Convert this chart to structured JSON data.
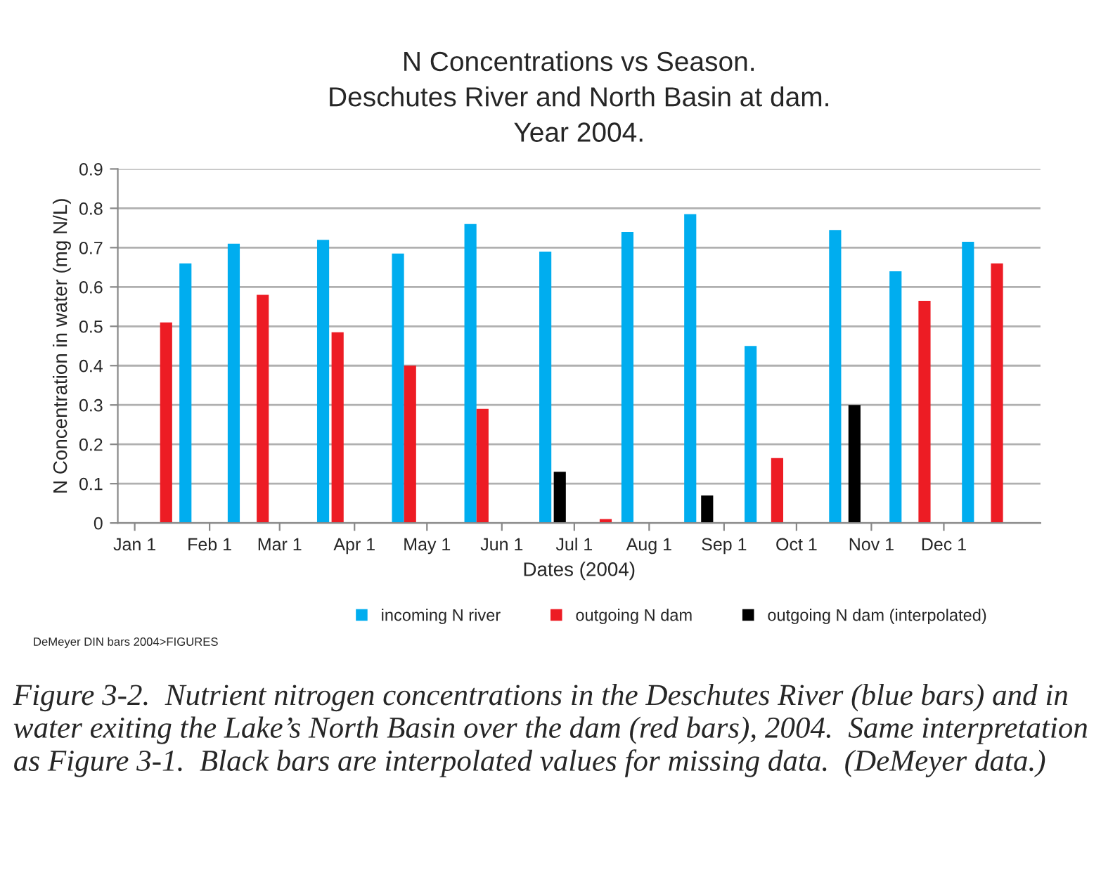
{
  "chart_data": {
    "type": "bar",
    "title": "N Concentrations vs Season.\nDeschutes River and North Basin at dam.\nYear 2004.",
    "xlabel": "Dates (2004)",
    "ylabel": "N Concentration in water (mg N/L)",
    "series": [
      {
        "name": "incoming N river",
        "color": "#00adef",
        "x": [
          "2004-01-22",
          "2004-02-11",
          "2004-03-19",
          "2004-04-19",
          "2004-05-19",
          "2004-06-19",
          "2004-07-23",
          "2004-08-18",
          "2004-09-12",
          "2004-10-17",
          "2004-11-11",
          "2004-12-11"
        ],
        "values": [
          0.66,
          0.71,
          0.72,
          0.685,
          0.76,
          0.69,
          0.74,
          0.785,
          0.45,
          0.745,
          0.64,
          0.715
        ]
      },
      {
        "name": "outgoing N dam",
        "color": "#ed1c24",
        "x": [
          "2004-01-14",
          "2004-02-23",
          "2004-03-25",
          "2004-04-24",
          "2004-05-24",
          "2004-07-14",
          "2004-09-23",
          "2004-11-23",
          "2004-12-23"
        ],
        "values": [
          0.51,
          0.58,
          0.485,
          0.4,
          0.29,
          0.01,
          0.165,
          0.565,
          0.66
        ]
      },
      {
        "name": "outgoing N dam (interpolated)",
        "color": "#000000",
        "x": [
          "2004-06-25",
          "2004-08-25",
          "2004-10-25"
        ],
        "values": [
          0.13,
          0.07,
          0.3
        ]
      }
    ],
    "xlim": [
      "2003-12-25",
      "2005-01-10"
    ],
    "xticks": [
      {
        "value": "2004-01-01",
        "label": "Jan 1"
      },
      {
        "value": "2004-02-01",
        "label": "Feb 1"
      },
      {
        "value": "2004-03-01",
        "label": "Mar 1"
      },
      {
        "value": "2004-04-01",
        "label": "Apr 1"
      },
      {
        "value": "2004-05-01",
        "label": "May 1"
      },
      {
        "value": "2004-06-01",
        "label": "Jun 1"
      },
      {
        "value": "2004-07-01",
        "label": "Jul 1"
      },
      {
        "value": "2004-08-01",
        "label": "Aug 1"
      },
      {
        "value": "2004-09-01",
        "label": "Sep 1"
      },
      {
        "value": "2004-10-01",
        "label": "Oct 1"
      },
      {
        "value": "2004-11-01",
        "label": "Nov 1"
      },
      {
        "value": "2004-12-01",
        "label": "Dec 1"
      }
    ],
    "ylim": [
      0,
      0.9
    ],
    "yticks": [
      0,
      0.1,
      0.2,
      0.3,
      0.4,
      0.5,
      0.6,
      0.7,
      0.8,
      0.9
    ],
    "grid": "y",
    "legend": "bottom",
    "annotations": [
      "DeMeyer DIN bars 2004>FIGURES",
      "Figure 3-2.  Nutrient nitrogen concentrations in the Deschutes River (blue bars) and in water exiting the Lake’s North Basin over the dam (red bars), 2004.  Same interpretation as Figure 3-1.  Black bars are interpolated values for missing data.  (DeMeyer data.)"
    ]
  }
}
